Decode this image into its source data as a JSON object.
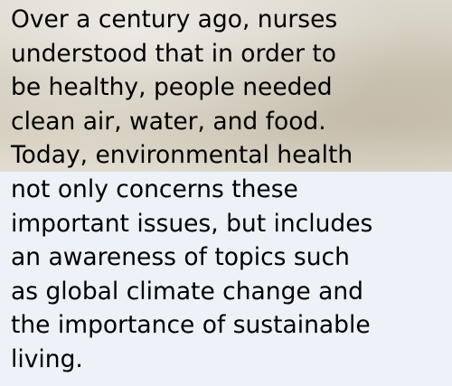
{
  "paragraph": {
    "lines": [
      "Over a century ago, nurses",
      "understood that in order to",
      "be healthy, people needed",
      "clean air, water, and food.",
      "Today, environmental health",
      "not only concerns these",
      "important issues, but includes",
      "an awareness of topics such",
      "as global climate change and",
      "the importance of sustainable",
      "living."
    ]
  }
}
